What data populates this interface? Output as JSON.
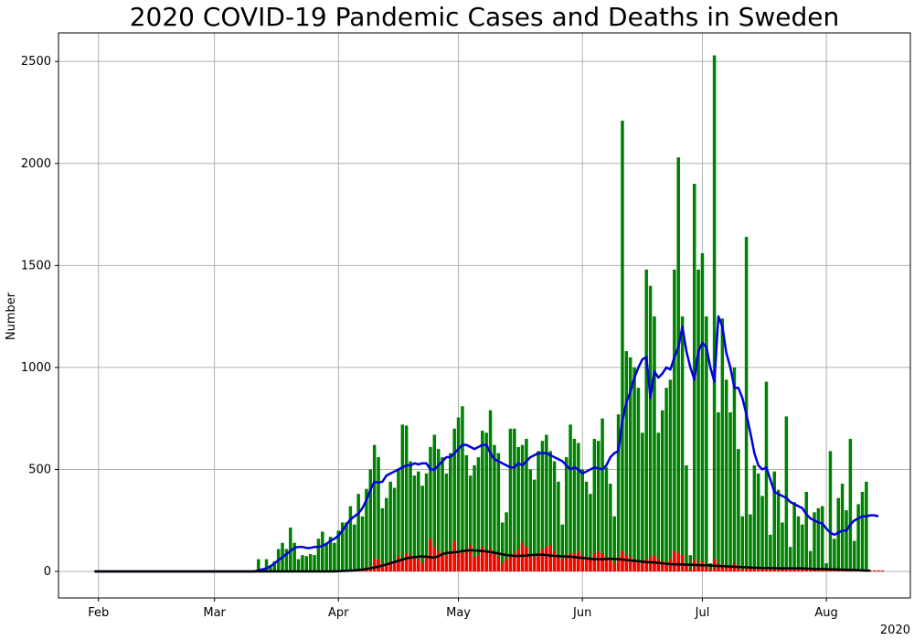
{
  "chart_data": {
    "type": "bar",
    "title": "2020 COVID-19 Pandemic Cases and Deaths in Sweden",
    "xlabel": "",
    "ylabel": "Number",
    "x_offset_label": "2020",
    "x_type": "date",
    "xlim": [
      "2020-01-22",
      "2020-08-22"
    ],
    "ylim": [
      -130,
      2640
    ],
    "x_ticks": [
      {
        "date": "2020-02-01",
        "label": "Feb"
      },
      {
        "date": "2020-03-01",
        "label": "Mar"
      },
      {
        "date": "2020-04-01",
        "label": "Apr"
      },
      {
        "date": "2020-05-01",
        "label": "May"
      },
      {
        "date": "2020-06-01",
        "label": "Jun"
      },
      {
        "date": "2020-07-01",
        "label": "Jul"
      },
      {
        "date": "2020-08-01",
        "label": "Aug"
      }
    ],
    "y_ticks": [
      0,
      500,
      1000,
      1500,
      2000,
      2500
    ],
    "grid": true,
    "legend": "none",
    "start_date": "2020-01-31",
    "series": [
      {
        "type": "bar",
        "color": "#008000",
        "values": [
          0,
          0,
          0,
          0,
          0,
          0,
          0,
          0,
          0,
          0,
          0,
          0,
          0,
          0,
          0,
          0,
          0,
          0,
          0,
          0,
          0,
          0,
          0,
          0,
          0,
          0,
          0,
          0,
          0,
          0,
          0,
          0,
          0,
          0,
          0,
          0,
          0,
          0,
          0,
          0,
          0,
          60,
          10,
          60,
          30,
          50,
          110,
          140,
          110,
          215,
          140,
          60,
          80,
          75,
          85,
          80,
          160,
          195,
          140,
          170,
          140,
          200,
          240,
          240,
          320,
          230,
          380,
          270,
          405,
          500,
          620,
          560,
          310,
          360,
          440,
          410,
          500,
          720,
          715,
          540,
          470,
          490,
          420,
          480,
          610,
          670,
          600,
          560,
          480,
          580,
          700,
          755,
          810,
          570,
          470,
          520,
          560,
          690,
          680,
          790,
          620,
          580,
          240,
          290,
          700,
          700,
          610,
          620,
          650,
          500,
          450,
          590,
          640,
          670,
          590,
          540,
          440,
          230,
          560,
          720,
          650,
          630,
          500,
          440,
          380,
          650,
          640,
          750,
          510,
          430,
          270,
          770,
          2210,
          1080,
          1050,
          1000,
          900,
          680,
          1480,
          1400,
          1250,
          680,
          790,
          900,
          940,
          1480,
          2030,
          1250,
          520,
          80,
          1900,
          1480,
          1560,
          1250,
          40,
          2530,
          780,
          1240,
          940,
          780,
          1000,
          600,
          270,
          1640,
          280,
          520,
          480,
          370,
          930,
          180,
          490,
          400,
          240,
          760,
          120,
          340,
          270,
          230,
          390,
          100,
          290,
          310,
          320,
          40,
          590,
          160,
          360,
          430,
          300,
          650,
          150,
          330,
          390,
          440
        ]
      },
      {
        "type": "bar",
        "color": "#ff0000",
        "values": [
          0,
          0,
          0,
          0,
          0,
          0,
          0,
          0,
          0,
          0,
          0,
          0,
          0,
          0,
          0,
          0,
          0,
          0,
          0,
          0,
          0,
          0,
          0,
          0,
          0,
          0,
          0,
          0,
          0,
          0,
          0,
          0,
          0,
          0,
          0,
          0,
          0,
          0,
          0,
          0,
          0,
          0,
          0,
          0,
          0,
          0,
          0,
          0,
          0,
          0,
          0,
          0,
          0,
          0,
          0,
          0,
          0,
          0,
          0,
          0,
          0,
          0,
          0,
          0,
          5,
          5,
          10,
          10,
          20,
          25,
          60,
          60,
          40,
          40,
          50,
          45,
          75,
          60,
          90,
          80,
          70,
          60,
          40,
          70,
          160,
          120,
          100,
          90,
          80,
          100,
          150,
          100,
          90,
          110,
          130,
          70,
          80,
          120,
          100,
          110,
          90,
          70,
          40,
          60,
          70,
          90,
          110,
          140,
          120,
          80,
          70,
          90,
          110,
          120,
          130,
          100,
          70,
          60,
          80,
          90,
          90,
          100,
          80,
          70,
          60,
          90,
          100,
          90,
          70,
          60,
          40,
          70,
          100,
          80,
          70,
          60,
          50,
          40,
          60,
          70,
          80,
          60,
          50,
          40,
          60,
          100,
          90,
          80,
          30,
          10,
          60,
          40,
          50,
          30,
          10,
          60,
          40,
          30,
          30,
          20,
          40,
          30,
          10,
          20,
          20,
          20,
          20,
          10,
          20,
          10,
          20,
          20,
          10,
          20,
          10,
          10,
          20,
          10,
          10,
          10,
          10,
          10,
          10,
          10,
          10,
          10,
          10,
          5,
          5,
          5,
          5,
          5,
          5,
          5,
          5,
          5,
          5,
          5
        ]
      },
      {
        "type": "line",
        "color": "#0000dd",
        "values": [
          0,
          0,
          0,
          0,
          0,
          0,
          0,
          0,
          0,
          0,
          0,
          0,
          0,
          0,
          0,
          0,
          0,
          0,
          0,
          0,
          0,
          0,
          0,
          0,
          0,
          0,
          0,
          0,
          0,
          0,
          0,
          0,
          0,
          0,
          0,
          0,
          0,
          0,
          0,
          0,
          0,
          5,
          10,
          15,
          25,
          40,
          55,
          70,
          85,
          100,
          115,
          120,
          120,
          115,
          115,
          120,
          120,
          125,
          135,
          150,
          160,
          175,
          200,
          230,
          255,
          270,
          285,
          310,
          350,
          400,
          440,
          435,
          440,
          470,
          480,
          490,
          500,
          510,
          520,
          520,
          530,
          525,
          530,
          530,
          500,
          500,
          520,
          540,
          560,
          560,
          580,
          600,
          620,
          620,
          610,
          600,
          610,
          620,
          620,
          580,
          550,
          540,
          530,
          520,
          510,
          510,
          530,
          520,
          540,
          560,
          570,
          580,
          580,
          580,
          570,
          560,
          550,
          540,
          520,
          500,
          510,
          500,
          480,
          490,
          500,
          510,
          505,
          500,
          520,
          560,
          580,
          590,
          740,
          830,
          880,
          950,
          1000,
          1040,
          1050,
          850,
          980,
          950,
          970,
          1000,
          990,
          1050,
          1100,
          1200,
          1080,
          1000,
          940,
          1080,
          1120,
          1100,
          1000,
          930,
          1250,
          1200,
          1070,
          1000,
          900,
          900,
          850,
          770,
          680,
          580,
          520,
          500,
          510,
          450,
          390,
          380,
          370,
          360,
          340,
          330,
          320,
          310,
          280,
          260,
          250,
          240,
          235,
          210,
          190,
          180,
          190,
          200,
          200,
          230,
          250,
          260,
          270,
          270,
          275,
          275,
          270
        ]
      },
      {
        "type": "line",
        "color": "#000000",
        "values": [
          0,
          0,
          0,
          0,
          0,
          0,
          0,
          0,
          0,
          0,
          0,
          0,
          0,
          0,
          0,
          0,
          0,
          0,
          0,
          0,
          0,
          0,
          0,
          0,
          0,
          0,
          0,
          0,
          0,
          0,
          0,
          0,
          0,
          0,
          0,
          0,
          0,
          0,
          0,
          0,
          0,
          0,
          0,
          0,
          0,
          0,
          0,
          0,
          0,
          0,
          0,
          0,
          0,
          0,
          0,
          0,
          0,
          0,
          0,
          0,
          0,
          1,
          2,
          3,
          4,
          5,
          7,
          9,
          12,
          15,
          19,
          24,
          29,
          34,
          40,
          46,
          52,
          58,
          64,
          68,
          70,
          72,
          74,
          72,
          70,
          68,
          75,
          85,
          90,
          92,
          94,
          96,
          100,
          102,
          104,
          103,
          102,
          100,
          98,
          95,
          92,
          88,
          84,
          80,
          78,
          76,
          76,
          77,
          78,
          80,
          81,
          82,
          82,
          80,
          78,
          76,
          75,
          74,
          73,
          72,
          70,
          68,
          66,
          64,
          62,
          60,
          60,
          60,
          61,
          62,
          61,
          60,
          58,
          56,
          54,
          52,
          50,
          48,
          46,
          45,
          44,
          42,
          40,
          38,
          36,
          35,
          34,
          34,
          33,
          33,
          32,
          31,
          30,
          30,
          29,
          28,
          27,
          26,
          25,
          24,
          23,
          22,
          21,
          20,
          19,
          18,
          18,
          17,
          17,
          16,
          16,
          15,
          15,
          15,
          15,
          15,
          15,
          15,
          14,
          13,
          12,
          12,
          11,
          11,
          10,
          10,
          9,
          9,
          8,
          8,
          7,
          6,
          5,
          4,
          4
        ]
      }
    ]
  }
}
